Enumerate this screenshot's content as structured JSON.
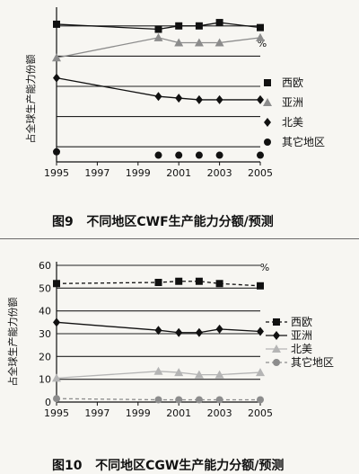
{
  "figures": [
    {
      "caption": "图9   不同地区CWF生产能力分额/预测",
      "chart_data": {
        "type": "line",
        "title": "",
        "xlabel": "",
        "ylabel": "占全球生产能力份额",
        "unit": "%",
        "x_ticks": [
          "1995",
          "1997",
          "1999",
          "2001",
          "2003",
          "2005"
        ],
        "y_ticks": [],
        "xlim": [
          1995,
          2005
        ],
        "ylim": [
          0,
          45
        ],
        "grid": "horizontal",
        "legend_position": "right",
        "series": [
          {
            "name": "西欧",
            "marker": "square",
            "line": "solid",
            "x": [
              1995,
              2000,
              2001,
              2002,
              2003,
              2005
            ],
            "y": [
              41,
              39.5,
              40.5,
              40.5,
              41.5,
              40
            ]
          },
          {
            "name": "亚洲",
            "marker": "triangle",
            "line": "solid",
            "x": [
              1995,
              2000,
              2001,
              2002,
              2003,
              2005
            ],
            "y": [
              31,
              37,
              35.5,
              35.5,
              35.5,
              37
            ]
          },
          {
            "name": "北美",
            "marker": "diamond",
            "line": "solid",
            "x": [
              1995,
              2000,
              2001,
              2002,
              2003,
              2005
            ],
            "y": [
              25,
              19.5,
              19,
              18.5,
              18.5,
              18.5
            ]
          },
          {
            "name": "其它地区",
            "marker": "circle",
            "line": "none",
            "x": [
              1995,
              2000,
              2001,
              2002,
              2003,
              2005
            ],
            "y": [
              3,
              2,
              2,
              2,
              2,
              2
            ]
          }
        ]
      }
    },
    {
      "caption": "图10   不同地区CGW生产能力分额/预测",
      "chart_data": {
        "type": "line",
        "title": "",
        "xlabel": "",
        "ylabel": "占全球生产能力份额",
        "unit": "%",
        "x_ticks": [
          "1995",
          "1997",
          "1999",
          "2001",
          "2003",
          "2005"
        ],
        "y_ticks": [
          "0",
          "10",
          "20",
          "30",
          "40",
          "50",
          "60"
        ],
        "xlim": [
          1995,
          2005
        ],
        "ylim": [
          0,
          60
        ],
        "grid": "horizontal",
        "legend_position": "right",
        "series": [
          {
            "name": "西欧",
            "marker": "square",
            "line": "dashed",
            "x": [
              1995,
              2000,
              2001,
              2002,
              2003,
              2005
            ],
            "y": [
              52,
              52.5,
              53,
              53,
              52,
              51
            ]
          },
          {
            "name": "亚洲",
            "marker": "diamond",
            "line": "solid",
            "x": [
              1995,
              2000,
              2001,
              2002,
              2003,
              2005
            ],
            "y": [
              35,
              31.5,
              30.5,
              30.5,
              32,
              31
            ]
          },
          {
            "name": "北美",
            "marker": "triangle",
            "line": "solid",
            "x": [
              1995,
              2000,
              2001,
              2002,
              2003,
              2005
            ],
            "y": [
              10.5,
              13.5,
              13,
              12,
              12,
              13
            ]
          },
          {
            "name": "其它地区",
            "marker": "circle",
            "line": "dashed",
            "x": [
              1995,
              2000,
              2001,
              2002,
              2003,
              2005
            ],
            "y": [
              1.5,
              1,
              1,
              1,
              1,
              1
            ]
          }
        ]
      }
    }
  ],
  "colors": {
    "line": "#111111",
    "grid": "#222222",
    "series_gray": "#8c8c8c",
    "series_light": "#b5b5b5",
    "separator": "#6a6a6a",
    "background": "#f7f6f2"
  }
}
